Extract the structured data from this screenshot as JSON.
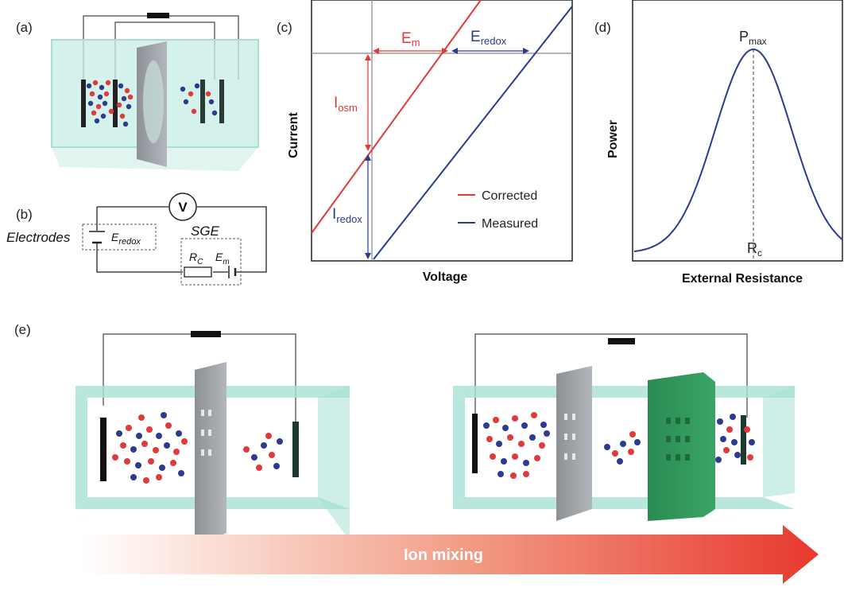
{
  "panels": {
    "a": "(a)",
    "b": "(b)",
    "c": "(c)",
    "d": "(d)",
    "e": "(e)"
  },
  "circuit": {
    "voltmeter": "V",
    "electrodes_label": "Electrodes",
    "e_redox": "E",
    "e_redox_sub": "redox",
    "sge_label": "SGE",
    "rc": "R",
    "rc_sub": "C",
    "em": "E",
    "em_sub": "m"
  },
  "chart_c": {
    "xlabel": "Voltage",
    "ylabel": "Current",
    "em_label": "E",
    "em_sub": "m",
    "eredox_label": "E",
    "eredox_sub": "redox",
    "iosm_label": "I",
    "iosm_sub": "osm",
    "iredox_label": "I",
    "iredox_sub": "redox",
    "legend_corrected": "Corrected",
    "legend_measured": "Measured"
  },
  "chart_d": {
    "xlabel": "External Resistance",
    "ylabel": "Power",
    "pmax": "P",
    "pmax_sub": "max",
    "rc": "R",
    "rc_sub": "c"
  },
  "arrow_label": "Ion mixing",
  "colors": {
    "red": "#e03a3a",
    "blue": "#2b3b8f",
    "cyan": "#a8e0d4",
    "gray_membrane": "#9a9ea3",
    "green_membrane": "#2f8a55"
  },
  "chart_data": [
    {
      "type": "line",
      "xlabel": "Voltage",
      "ylabel": "Current",
      "series": [
        {
          "name": "Corrected",
          "x": [
            0,
            1
          ],
          "y": [
            0.1,
            1.0
          ]
        },
        {
          "name": "Measured",
          "x": [
            0.25,
            1
          ],
          "y": [
            0.0,
            1.0
          ]
        }
      ]
    },
    {
      "type": "line",
      "xlabel": "External Resistance",
      "ylabel": "Power",
      "series": [
        {
          "x": [
            0,
            0.25,
            0.5,
            0.75,
            1
          ],
          "y": [
            0.05,
            0.45,
            1.0,
            0.45,
            0.05
          ]
        }
      ]
    }
  ]
}
